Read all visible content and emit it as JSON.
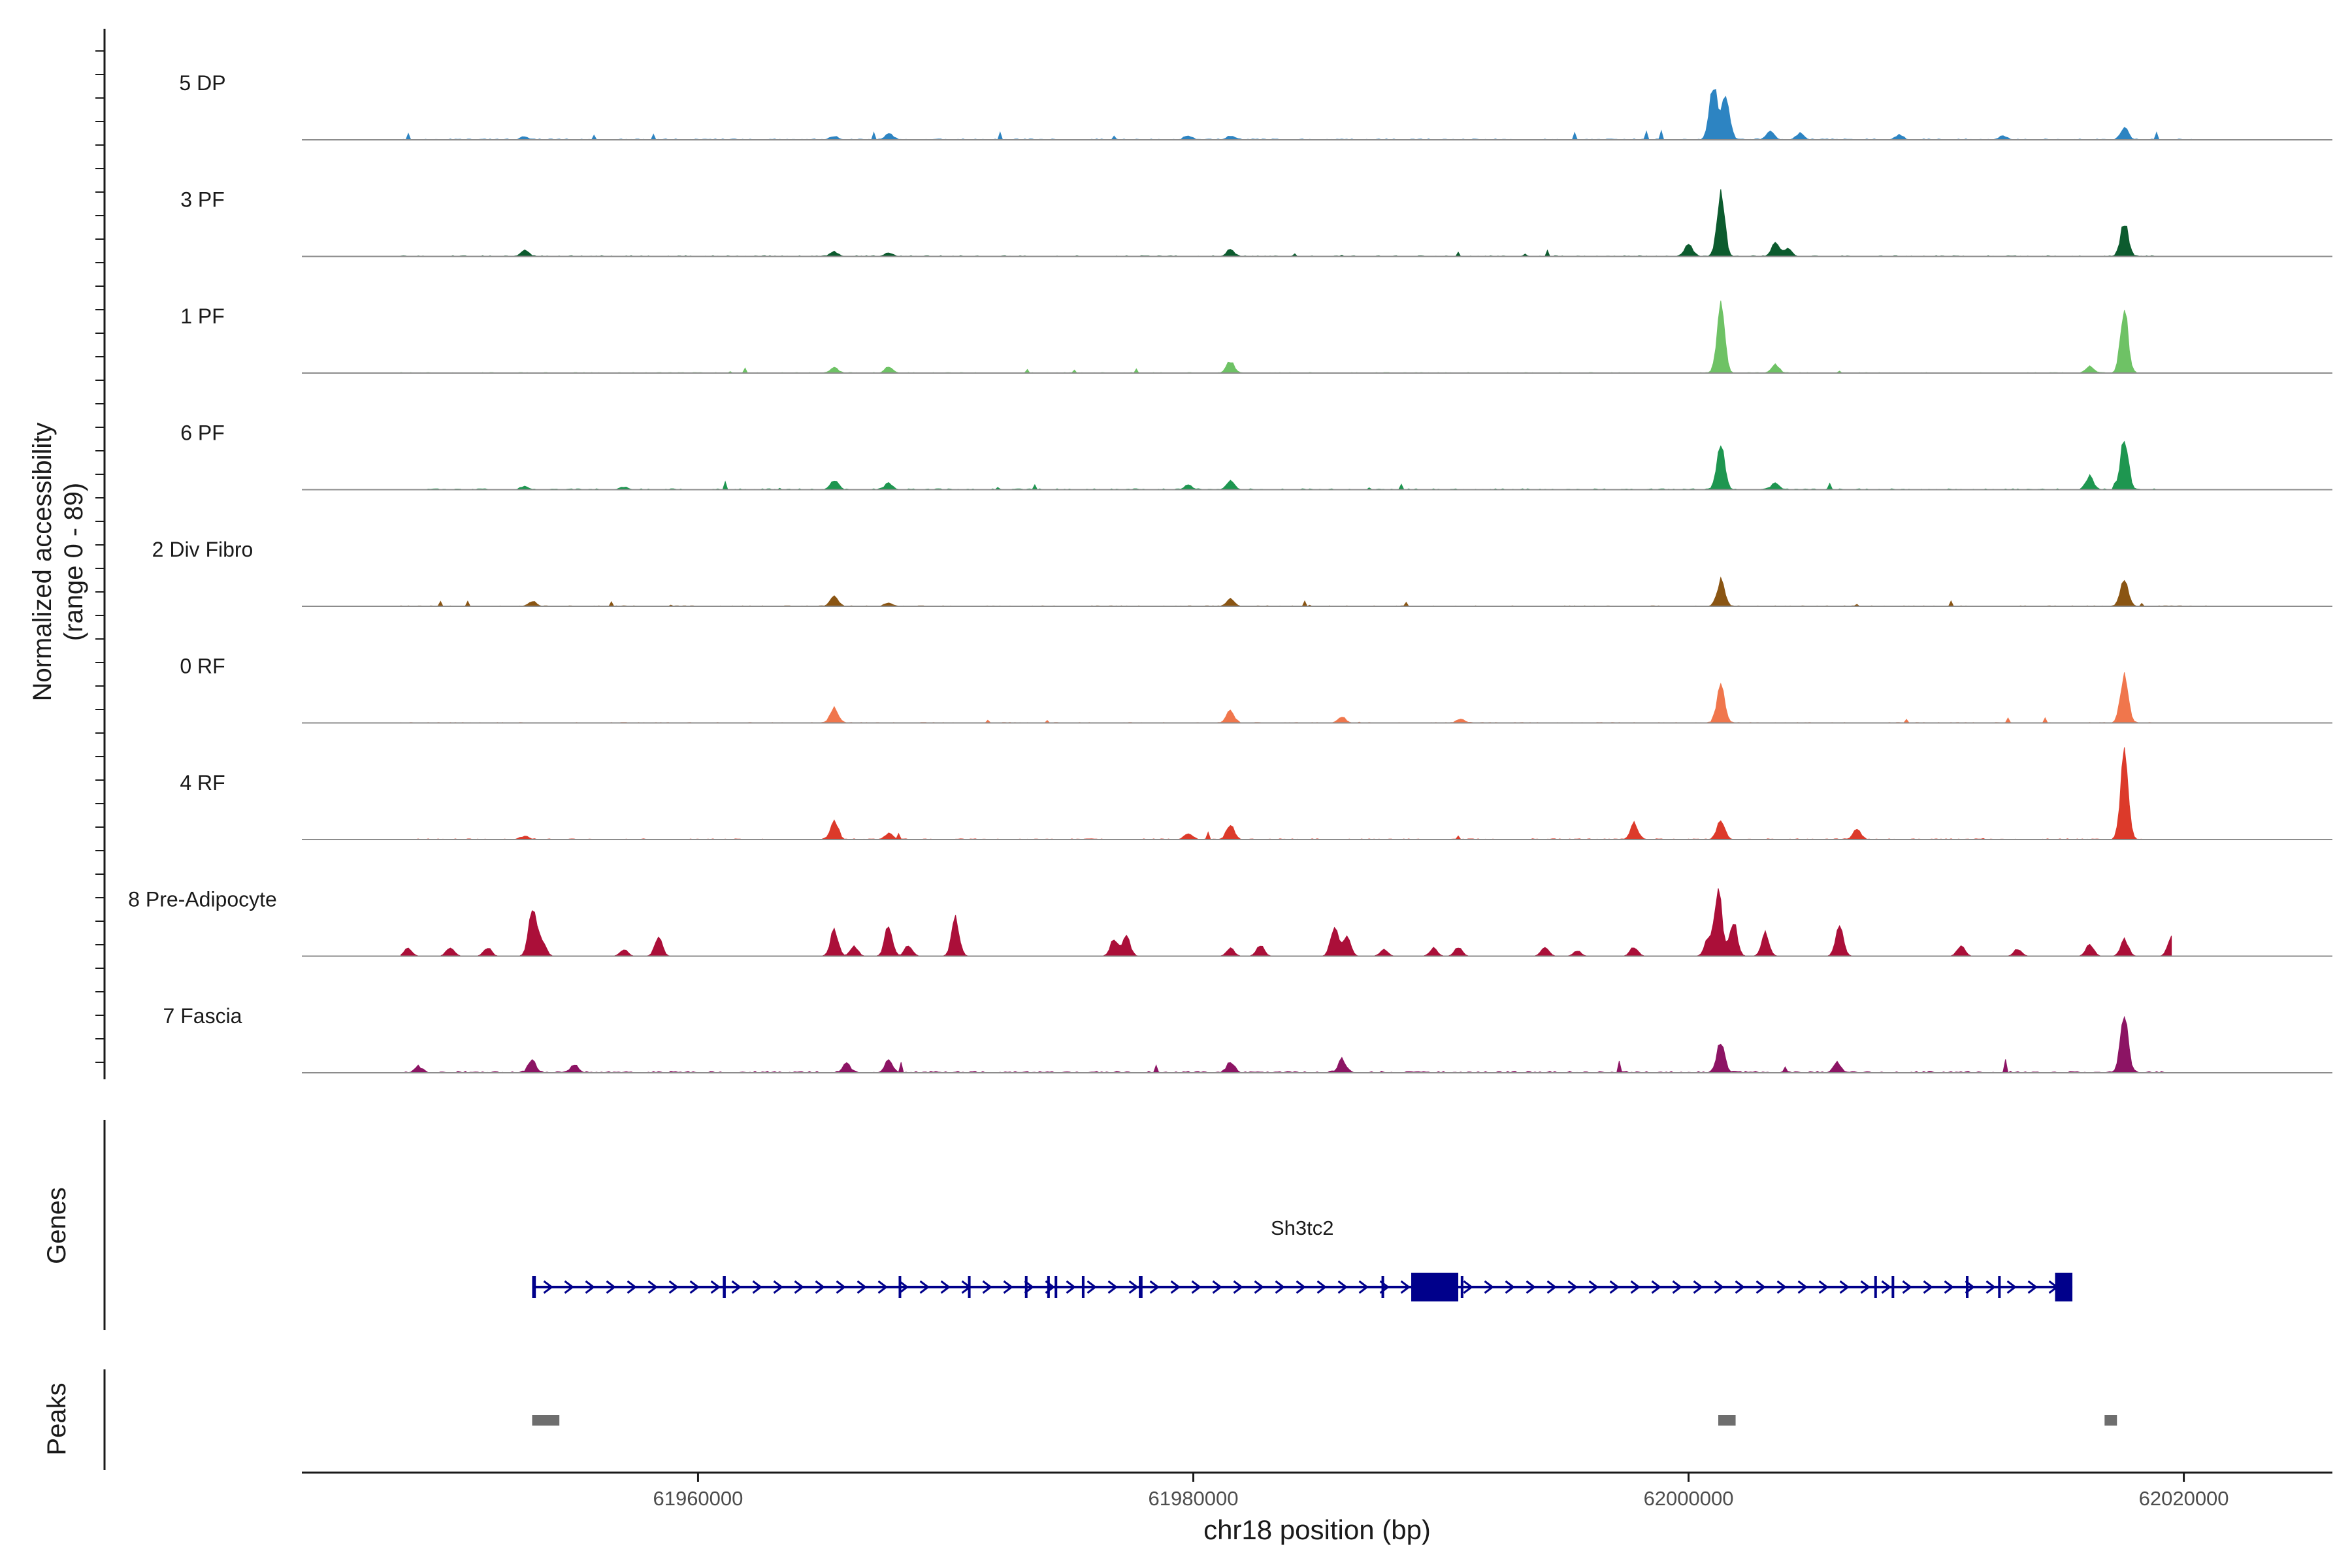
{
  "chart_data": {
    "type": "area",
    "title": "",
    "ylabel_line1": "Normalized accessibility",
    "ylabel_line2": "(range 0 - 89)",
    "ylim": [
      0,
      89
    ],
    "xlabel": "chr18 position (bp)",
    "xlim": [
      61944000,
      62026000
    ],
    "xticks": [
      61960000,
      61980000,
      62000000,
      62020000
    ],
    "xtick_labels": [
      "61960000",
      "61980000",
      "62000000",
      "62020000"
    ],
    "region": [
      61948000,
      62021000
    ],
    "tracks": [
      {
        "name": "5 DP",
        "color": "#2d84c2",
        "noise": 5,
        "extent": [
          61948000,
          62021000
        ],
        "peaks": [
          [
            61953000,
            4
          ],
          [
            61965500,
            5
          ],
          [
            61967700,
            9
          ],
          [
            61979800,
            6
          ],
          [
            61981500,
            5
          ],
          [
            62001000,
            82
          ],
          [
            62001500,
            70
          ],
          [
            62003300,
            14
          ],
          [
            62004500,
            10
          ],
          [
            62008500,
            7
          ],
          [
            62012700,
            5
          ],
          [
            62017600,
            18
          ]
        ]
      },
      {
        "name": "3 PF",
        "color": "#0c5b2e",
        "noise": 4,
        "extent": [
          61948000,
          62019000
        ],
        "peaks": [
          [
            61953000,
            9
          ],
          [
            61965500,
            7
          ],
          [
            61967700,
            6
          ],
          [
            61981500,
            10
          ],
          [
            62000000,
            20
          ],
          [
            62001300,
            95
          ],
          [
            62003500,
            20
          ],
          [
            62004000,
            12
          ],
          [
            62017600,
            52
          ]
        ]
      },
      {
        "name": "1 PF",
        "color": "#6ec265",
        "noise": 3,
        "extent": [
          61948000,
          62019000
        ],
        "peaks": [
          [
            61965500,
            8
          ],
          [
            61967700,
            9
          ],
          [
            61981500,
            18
          ],
          [
            62001300,
            100
          ],
          [
            62003500,
            12
          ],
          [
            62016200,
            10
          ],
          [
            62017600,
            90
          ]
        ]
      },
      {
        "name": "6 PF",
        "color": "#1e9650",
        "noise": 5,
        "extent": [
          61949000,
          62019000
        ],
        "peaks": [
          [
            61953000,
            5
          ],
          [
            61957000,
            4
          ],
          [
            61965500,
            14
          ],
          [
            61967700,
            9
          ],
          [
            61979800,
            6
          ],
          [
            61981500,
            14
          ],
          [
            62001300,
            70
          ],
          [
            62003500,
            10
          ],
          [
            62016200,
            20
          ],
          [
            62017600,
            78
          ]
        ]
      },
      {
        "name": "2 Div Fibro",
        "color": "#8a5513",
        "noise": 3,
        "extent": [
          61947500,
          62021000
        ],
        "peaks": [
          [
            61953300,
            7
          ],
          [
            61965500,
            15
          ],
          [
            61967700,
            5
          ],
          [
            61981500,
            11
          ],
          [
            62001300,
            38
          ],
          [
            62017600,
            42
          ]
        ]
      },
      {
        "name": "0 RF",
        "color": "#f0764c",
        "noise": 3,
        "extent": [
          61948000,
          62019000
        ],
        "peaks": [
          [
            61965500,
            24
          ],
          [
            61981500,
            18
          ],
          [
            61986000,
            9
          ],
          [
            61990800,
            6
          ],
          [
            62001300,
            55
          ],
          [
            62017600,
            70
          ]
        ]
      },
      {
        "name": "4 RF",
        "color": "#dc3a2a",
        "noise": 4,
        "extent": [
          61948000,
          62019500
        ],
        "peaks": [
          [
            61953000,
            5
          ],
          [
            61965500,
            28
          ],
          [
            61967700,
            9
          ],
          [
            61979800,
            9
          ],
          [
            61981500,
            22
          ],
          [
            61997800,
            24
          ],
          [
            62001300,
            28
          ],
          [
            62006800,
            16
          ],
          [
            62017600,
            130
          ]
        ]
      },
      {
        "name": "8 Pre-Adipocyte",
        "color": "#ab0f39",
        "noise": 0,
        "extent": [
          61948000,
          62019500
        ],
        "peaks": [
          [
            61948300,
            12
          ],
          [
            61950000,
            14
          ],
          [
            61951500,
            13
          ],
          [
            61953300,
            75
          ],
          [
            61953700,
            25
          ],
          [
            61957000,
            10
          ],
          [
            61958400,
            28
          ],
          [
            61965500,
            40
          ],
          [
            61966300,
            15
          ],
          [
            61967700,
            45
          ],
          [
            61968500,
            16
          ],
          [
            61970400,
            55
          ],
          [
            61976800,
            25
          ],
          [
            61977300,
            30
          ],
          [
            61981500,
            12
          ],
          [
            61982700,
            17
          ],
          [
            61985700,
            45
          ],
          [
            61986200,
            30
          ],
          [
            61987700,
            10
          ],
          [
            61989700,
            12
          ],
          [
            61990700,
            13
          ],
          [
            61994200,
            15
          ],
          [
            61995500,
            8
          ],
          [
            61997800,
            14
          ],
          [
            62000800,
            25
          ],
          [
            62001200,
            95
          ],
          [
            62001800,
            55
          ],
          [
            62003100,
            35
          ],
          [
            62006100,
            45
          ],
          [
            62011000,
            15
          ],
          [
            62013300,
            11
          ],
          [
            62016200,
            18
          ],
          [
            62017600,
            25
          ],
          [
            62019500,
            30
          ]
        ]
      },
      {
        "name": "7 Fascia",
        "color": "#8c1464",
        "noise": 8,
        "extent": [
          61948000,
          62019500
        ],
        "peaks": [
          [
            61948700,
            9
          ],
          [
            61953300,
            20
          ],
          [
            61955000,
            12
          ],
          [
            61966000,
            14
          ],
          [
            61967700,
            19
          ],
          [
            61981500,
            16
          ],
          [
            61986000,
            19
          ],
          [
            62001300,
            45
          ],
          [
            62006000,
            15
          ],
          [
            62017600,
            85
          ]
        ]
      }
    ],
    "genes": [
      {
        "name": "Sh3tc2",
        "start": 61953300,
        "end": 62015500,
        "strand": "+",
        "exons": [
          [
            61953300,
            61953450
          ],
          [
            61961000,
            61961120
          ],
          [
            61968100,
            61968200
          ],
          [
            61970900,
            61971000
          ],
          [
            61973200,
            61973300
          ],
          [
            61974100,
            61974200
          ],
          [
            61974400,
            61974480
          ],
          [
            61975500,
            61975580
          ],
          [
            61977800,
            61977950
          ],
          [
            61987600,
            61987700
          ],
          [
            61988800,
            61990700
          ],
          [
            61990800,
            61990900
          ],
          [
            62007500,
            62007600
          ],
          [
            62008200,
            62008300
          ],
          [
            62011200,
            62011300
          ],
          [
            62012500,
            62012600
          ],
          [
            62014800,
            62015500
          ]
        ],
        "thick_exons": [
          [
            61988800,
            61990700
          ],
          [
            62014800,
            62015500
          ]
        ]
      }
    ],
    "peaks_track": [
      [
        61953300,
        61954400
      ],
      [
        62001200,
        62001900
      ],
      [
        62016800,
        62017300
      ]
    ],
    "panel_labels": {
      "genes": "Genes",
      "peaks": "Peaks"
    }
  }
}
